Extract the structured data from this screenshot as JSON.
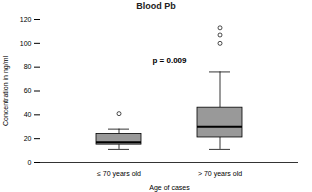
{
  "chart_data": {
    "type": "box",
    "title": "Blood Pb",
    "annotation": "p = 0.009",
    "x_label": "Age of cases",
    "y_label": "Concentration in ng/ml",
    "categories": [
      "≤ 70 years old",
      "> 70 years old"
    ],
    "boxes": [
      {
        "min": 11,
        "q1": 15,
        "median": 17,
        "q3": 24,
        "max": 28,
        "outliers": [
          41
        ]
      },
      {
        "min": 11,
        "q1": 21,
        "median": 30,
        "q3": 46,
        "max": 76,
        "outliers": [
          100,
          107,
          113
        ]
      }
    ],
    "color": "#999999",
    "ylim": [
      0,
      120
    ],
    "yticks": [
      0,
      20,
      40,
      60,
      80,
      100,
      120
    ],
    "grid": false
  }
}
